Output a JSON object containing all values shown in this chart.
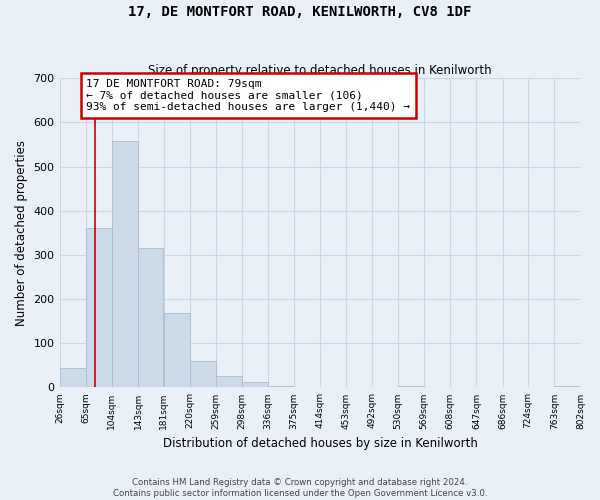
{
  "title": "17, DE MONTFORT ROAD, KENILWORTH, CV8 1DF",
  "subtitle": "Size of property relative to detached houses in Kenilworth",
  "xlabel": "Distribution of detached houses by size in Kenilworth",
  "ylabel": "Number of detached properties",
  "bar_edges": [
    26,
    65,
    104,
    143,
    181,
    220,
    259,
    298,
    336,
    375,
    414,
    453,
    492,
    530,
    569,
    608,
    647,
    686,
    724,
    763,
    802
  ],
  "bar_heights": [
    44,
    360,
    557,
    315,
    168,
    60,
    25,
    12,
    4,
    0,
    0,
    0,
    0,
    3,
    0,
    0,
    0,
    0,
    0,
    4
  ],
  "bar_color": "#ccd9e8",
  "bar_edge_color": "#aabccc",
  "vline_color": "#cc0000",
  "vline_x": 79,
  "ylim": [
    0,
    700
  ],
  "yticks": [
    0,
    100,
    200,
    300,
    400,
    500,
    600,
    700
  ],
  "tick_labels": [
    "26sqm",
    "65sqm",
    "104sqm",
    "143sqm",
    "181sqm",
    "220sqm",
    "259sqm",
    "298sqm",
    "336sqm",
    "375sqm",
    "414sqm",
    "453sqm",
    "492sqm",
    "530sqm",
    "569sqm",
    "608sqm",
    "647sqm",
    "686sqm",
    "724sqm",
    "763sqm",
    "802sqm"
  ],
  "annotation_box_line1": "17 DE MONTFORT ROAD: 79sqm",
  "annotation_box_line2": "← 7% of detached houses are smaller (106)",
  "annotation_box_line3": "93% of semi-detached houses are larger (1,440) →",
  "annotation_box_color": "#cc0000",
  "annotation_box_fill": "#ffffff",
  "footer_line1": "Contains HM Land Registry data © Crown copyright and database right 2024.",
  "footer_line2": "Contains public sector information licensed under the Open Government Licence v3.0.",
  "grid_color": "#c8d8e8",
  "background_color": "#eaf0f8"
}
